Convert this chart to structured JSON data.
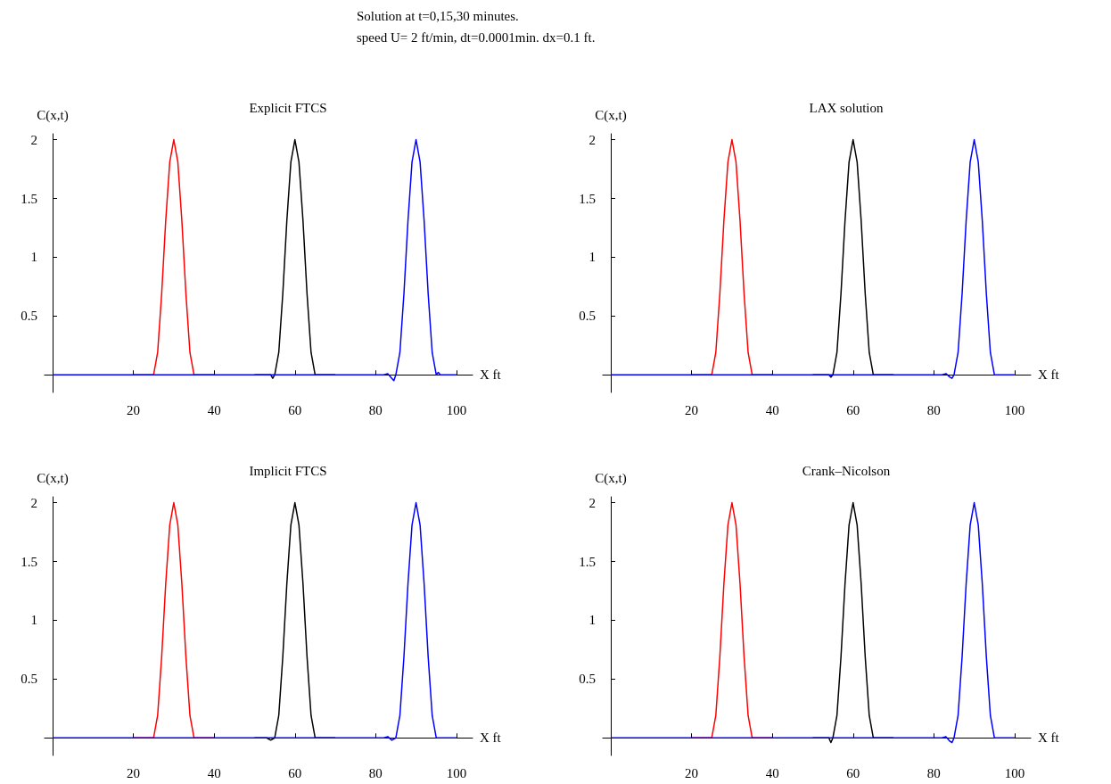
{
  "chart_data": [
    {
      "type": "line",
      "title": "Explicit FTCS",
      "xlabel": "X ft",
      "ylabel": "C(x,t)",
      "annotations": [
        "Solution at t=0,15,30 minutes.",
        "speed U= 2 ft/min, dt=0.0001min. dx=0.1 ft."
      ],
      "xlim": [
        -2,
        104
      ],
      "ylim": [
        -0.15,
        2.05
      ],
      "xticks": [
        20,
        40,
        60,
        80,
        100
      ],
      "yticks": [
        0.5,
        1,
        1.5,
        2
      ],
      "grid": false,
      "marker": "none",
      "line_style": "solid",
      "series": [
        {
          "color": "#ff0000",
          "x": [
            20,
            25,
            26,
            27,
            28,
            29,
            30,
            31,
            32,
            33,
            34,
            35,
            40
          ],
          "values": [
            0,
            0,
            0.19,
            0.69,
            1.31,
            1.81,
            2,
            1.81,
            1.31,
            0.69,
            0.19,
            0,
            0
          ]
        },
        {
          "color": "#000000",
          "x": [
            50,
            54,
            54.5,
            55,
            56,
            57,
            58,
            59,
            60,
            61,
            62,
            63,
            64,
            65,
            66,
            70
          ],
          "values": [
            0,
            0,
            -0.03,
            0,
            0.19,
            0.69,
            1.31,
            1.81,
            2,
            1.81,
            1.31,
            0.69,
            0.19,
            0,
            0,
            0
          ]
        },
        {
          "color": "#0000ff",
          "x": [
            0,
            82,
            83,
            84,
            84.5,
            85,
            86,
            87,
            88,
            89,
            90,
            91,
            92,
            93,
            94,
            95,
            95.5,
            96,
            100
          ],
          "values": [
            0,
            0,
            0.01,
            -0.03,
            -0.05,
            0,
            0.19,
            0.69,
            1.31,
            1.81,
            2,
            1.81,
            1.31,
            0.69,
            0.19,
            0,
            0.02,
            0,
            0
          ]
        }
      ]
    },
    {
      "type": "line",
      "title": "LAX solution",
      "xlabel": "X ft",
      "ylabel": "C(x,t)",
      "xlim": [
        -2,
        104
      ],
      "ylim": [
        -0.15,
        2.05
      ],
      "xticks": [
        20,
        40,
        60,
        80,
        100
      ],
      "yticks": [
        0.5,
        1,
        1.5,
        2
      ],
      "grid": false,
      "marker": "none",
      "line_style": "solid",
      "series": [
        {
          "color": "#ff0000",
          "x": [
            20,
            25,
            26,
            27,
            28,
            29,
            30,
            31,
            32,
            33,
            34,
            35,
            40
          ],
          "values": [
            0,
            0,
            0.19,
            0.69,
            1.31,
            1.81,
            2,
            1.81,
            1.31,
            0.69,
            0.19,
            0,
            0
          ]
        },
        {
          "color": "#000000",
          "x": [
            50,
            54,
            54.5,
            55,
            56,
            57,
            58,
            59,
            60,
            61,
            62,
            63,
            64,
            65,
            66,
            70
          ],
          "values": [
            0,
            0,
            -0.02,
            0,
            0.19,
            0.69,
            1.31,
            1.81,
            2,
            1.81,
            1.31,
            0.69,
            0.19,
            0,
            0,
            0
          ]
        },
        {
          "color": "#0000ff",
          "x": [
            0,
            82,
            83,
            84,
            84.5,
            85,
            86,
            87,
            88,
            89,
            90,
            91,
            92,
            93,
            94,
            95,
            96,
            100
          ],
          "values": [
            0,
            0,
            0.01,
            -0.02,
            -0.03,
            0,
            0.19,
            0.69,
            1.31,
            1.81,
            2,
            1.81,
            1.31,
            0.69,
            0.19,
            0,
            0,
            0
          ]
        }
      ]
    },
    {
      "type": "line",
      "title": "Implicit FTCS",
      "xlabel": "X ft",
      "ylabel": "C(x,t)",
      "xlim": [
        -2,
        104
      ],
      "ylim": [
        -0.15,
        2.05
      ],
      "xticks": [
        20,
        40,
        60,
        80,
        100
      ],
      "yticks": [
        0.5,
        1,
        1.5,
        2
      ],
      "grid": false,
      "marker": "none",
      "line_style": "solid",
      "series": [
        {
          "color": "#ff0000",
          "x": [
            20,
            25,
            26,
            27,
            28,
            29,
            30,
            31,
            32,
            33,
            34,
            35,
            40
          ],
          "values": [
            0,
            0,
            0.19,
            0.69,
            1.31,
            1.81,
            2,
            1.81,
            1.31,
            0.69,
            0.19,
            0,
            0
          ]
        },
        {
          "color": "#000000",
          "x": [
            50,
            53,
            54,
            55,
            56,
            57,
            58,
            59,
            60,
            61,
            62,
            63,
            64,
            65,
            66,
            70
          ],
          "values": [
            0,
            0,
            -0.02,
            0,
            0.19,
            0.69,
            1.31,
            1.81,
            2,
            1.81,
            1.31,
            0.69,
            0.19,
            0,
            0,
            0
          ]
        },
        {
          "color": "#0000ff",
          "x": [
            0,
            82,
            83,
            84,
            85,
            86,
            87,
            88,
            89,
            90,
            91,
            92,
            93,
            94,
            95,
            96,
            100
          ],
          "values": [
            0,
            0,
            0.01,
            -0.02,
            0,
            0.19,
            0.69,
            1.31,
            1.81,
            2,
            1.81,
            1.31,
            0.69,
            0.19,
            0,
            0,
            0
          ]
        }
      ]
    },
    {
      "type": "line",
      "title": "Crank–Nicolson",
      "xlabel": "X ft",
      "ylabel": "C(x,t)",
      "xlim": [
        -2,
        104
      ],
      "ylim": [
        -0.15,
        2.05
      ],
      "xticks": [
        20,
        40,
        60,
        80,
        100
      ],
      "yticks": [
        0.5,
        1,
        1.5,
        2
      ],
      "grid": false,
      "marker": "none",
      "line_style": "solid",
      "series": [
        {
          "color": "#ff0000",
          "x": [
            20,
            25,
            26,
            27,
            28,
            29,
            30,
            31,
            32,
            33,
            34,
            35,
            40
          ],
          "values": [
            0,
            0,
            0.19,
            0.69,
            1.31,
            1.81,
            2,
            1.81,
            1.31,
            0.69,
            0.19,
            0,
            0
          ]
        },
        {
          "color": "#000000",
          "x": [
            50,
            54,
            54.5,
            55,
            56,
            57,
            58,
            59,
            60,
            61,
            62,
            63,
            64,
            65,
            66,
            70
          ],
          "values": [
            0,
            0,
            -0.04,
            0,
            0.19,
            0.69,
            1.31,
            1.81,
            2,
            1.81,
            1.31,
            0.69,
            0.19,
            0,
            0,
            0
          ]
        },
        {
          "color": "#0000ff",
          "x": [
            0,
            82,
            83,
            84,
            84.5,
            85,
            86,
            87,
            88,
            89,
            90,
            91,
            92,
            93,
            94,
            95,
            96,
            100
          ],
          "values": [
            0,
            0,
            0.01,
            -0.03,
            -0.04,
            0,
            0.19,
            0.69,
            1.31,
            1.81,
            2,
            1.81,
            1.31,
            0.69,
            0.19,
            0,
            0,
            0
          ]
        }
      ]
    }
  ]
}
